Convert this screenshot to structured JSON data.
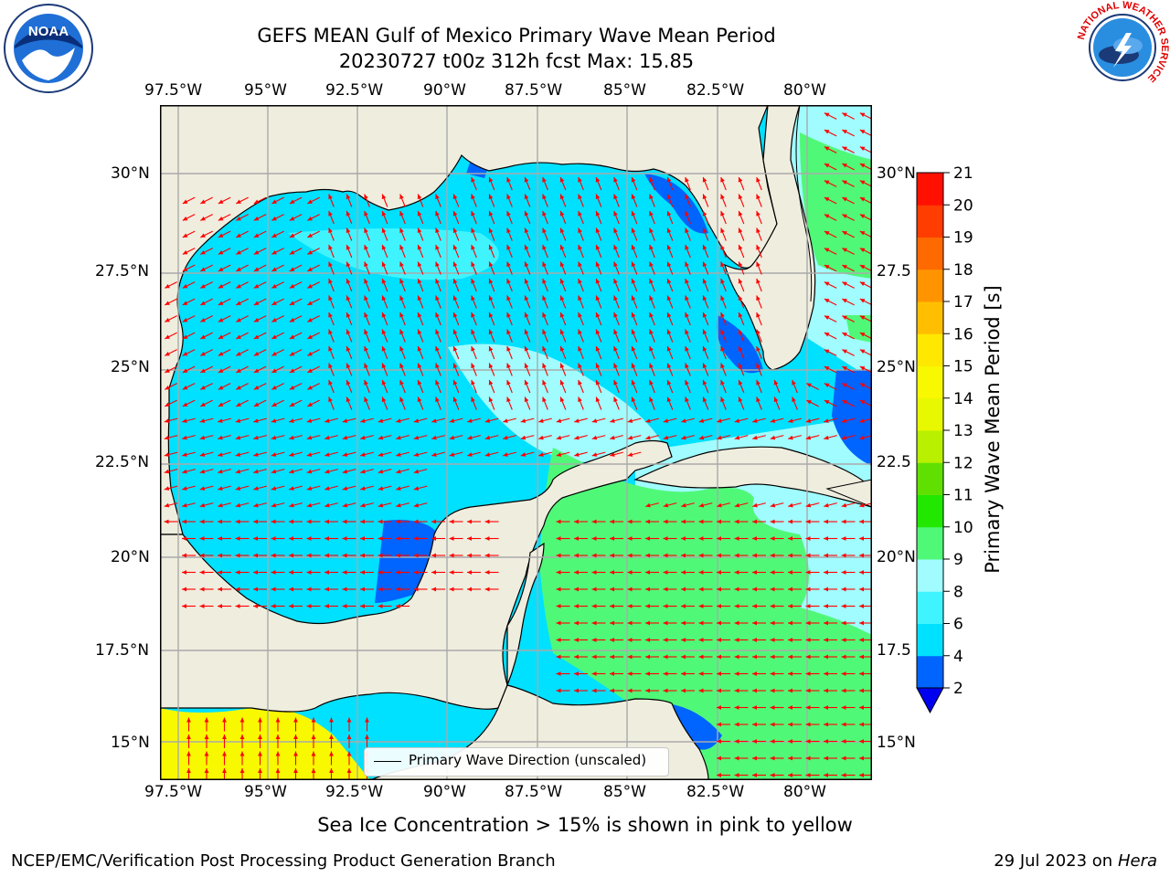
{
  "title_line1": "GEFS MEAN Gulf of Mexico Primary Wave Mean Period",
  "title_line2": "20230727 t00z 312h fcst   Max: 15.85",
  "lon_ticks": [
    "97.5°W",
    "95°W",
    "92.5°W",
    "90°W",
    "87.5°W",
    "85°W",
    "82.5°W",
    "80°W"
  ],
  "lat_ticks_left": [
    "30°N",
    "27.5°N",
    "25°N",
    "22.5°N",
    "20°N",
    "17.5°N",
    "15°N"
  ],
  "lat_ticks_right": [
    "30°N",
    "27.5",
    "25°N",
    "22.5",
    "20°N",
    "17.5",
    "15°N"
  ],
  "legend_label": "Primary Wave Direction (unscaled)",
  "colorbar": {
    "label": "Primary Wave Mean Period [s]",
    "ticks": [
      "2",
      "4",
      "6",
      "8",
      "9",
      "10",
      "11",
      "12",
      "13",
      "14",
      "15",
      "16",
      "17",
      "18",
      "19",
      "20",
      "21"
    ],
    "colors": [
      "#0064ff",
      "#00e0ff",
      "#40f4ff",
      "#a0fcff",
      "#50f878",
      "#22e800",
      "#60e000",
      "#b8f000",
      "#e8f800",
      "#f8f800",
      "#ffe800",
      "#ffbf00",
      "#ff9400",
      "#ff6a00",
      "#ff3d00",
      "#ff1000"
    ],
    "underflow_color": "#0000f0"
  },
  "colors": {
    "land": "#efedde",
    "arrow": "#ff0000",
    "grid": "#aaaaaa"
  },
  "note": "Sea Ice Concentration > 15% is shown in pink to yellow",
  "credit": "NCEP/EMC/Verification Post Processing Product Generation Branch",
  "date_text": "29 Jul 2023 on ",
  "date_host": "Hera",
  "logos": {
    "noaa_text": "NOAA",
    "nws_text": "NATIONAL WEATHER SERVICE"
  }
}
